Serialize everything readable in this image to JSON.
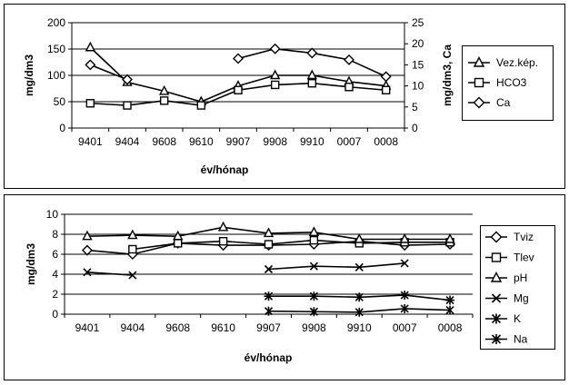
{
  "chart_data": [
    {
      "type": "line",
      "xlabel": "év/hónap",
      "ylabel": "mg/dm3",
      "y2label": "mg/dm3, Ca",
      "categories": [
        "9401",
        "9404",
        "9608",
        "9610",
        "9907",
        "9908",
        "9910",
        "0007",
        "0008"
      ],
      "ylim": [
        0,
        200
      ],
      "yticks": [
        "0",
        "50",
        "100",
        "150",
        "200"
      ],
      "y2lim": [
        0,
        25
      ],
      "y2ticks": [
        "0",
        "5",
        "10",
        "15",
        "20",
        "25"
      ],
      "grid": true,
      "legend": "right",
      "series": [
        {
          "name": "Vez.kép.",
          "marker": "triangle",
          "axis": "left",
          "values": [
            153,
            87,
            70,
            50,
            80,
            100,
            100,
            88,
            80
          ]
        },
        {
          "name": "HCO3",
          "marker": "square",
          "axis": "left",
          "values": [
            47,
            43,
            52,
            43,
            72,
            82,
            85,
            78,
            72
          ]
        },
        {
          "name": "Ca",
          "marker": "diamond",
          "axis": "right",
          "values": [
            15,
            11.5,
            null,
            null,
            16.5,
            18.8,
            17.8,
            16.2,
            12.2
          ]
        }
      ]
    },
    {
      "type": "line",
      "xlabel": "év/hónap",
      "ylabel": "mg/dm3",
      "categories": [
        "9401",
        "9404",
        "9608",
        "9610",
        "9907",
        "9908",
        "9910",
        "0007",
        "0008"
      ],
      "ylim": [
        0,
        10
      ],
      "yticks": [
        "0",
        "2",
        "4",
        "6",
        "8",
        "10"
      ],
      "grid": true,
      "legend": "right",
      "series": [
        {
          "name": "Tviz",
          "marker": "diamond",
          "values": [
            6.4,
            6.0,
            7.1,
            6.9,
            6.9,
            7.0,
            7.3,
            6.9,
            7.0
          ]
        },
        {
          "name": "Tlev",
          "marker": "square",
          "values": [
            null,
            6.5,
            7.1,
            7.3,
            7.0,
            7.4,
            7.1,
            7.2,
            7.2
          ]
        },
        {
          "name": "pH",
          "marker": "triangle",
          "values": [
            7.8,
            7.9,
            7.8,
            8.7,
            8.1,
            8.2,
            7.5,
            7.5,
            7.5
          ]
        },
        {
          "name": "Mg",
          "marker": "x",
          "values": [
            4.2,
            3.9,
            null,
            null,
            4.5,
            4.8,
            4.7,
            5.1,
            null
          ]
        },
        {
          "name": "K",
          "marker": "star",
          "values": [
            null,
            null,
            null,
            null,
            0.3,
            0.25,
            0.2,
            0.55,
            0.4
          ]
        },
        {
          "name": "Na",
          "marker": "asterisk",
          "values": [
            null,
            null,
            null,
            null,
            1.8,
            1.8,
            1.7,
            1.9,
            1.4
          ]
        }
      ]
    }
  ]
}
